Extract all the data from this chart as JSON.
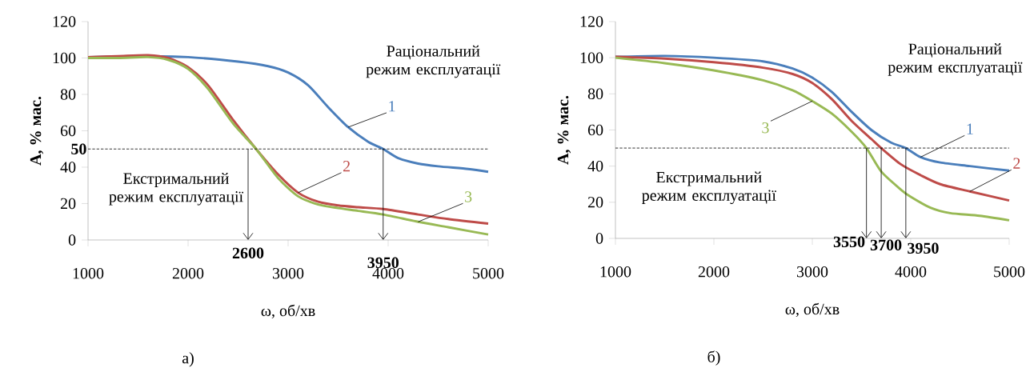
{
  "chart_data": [
    {
      "type": "line",
      "xlabel": "ω, об/хв",
      "ylabel": "А, % мас.",
      "xlim": [
        1000,
        5000
      ],
      "xticks": [
        1000,
        2000,
        3000,
        4000,
        5000
      ],
      "ylim": [
        0,
        120
      ],
      "yticks": [
        0,
        20,
        40,
        60,
        80,
        100,
        120
      ],
      "grid": false,
      "series": [
        {
          "name": "1",
          "color": "#4a7ebb",
          "x": [
            1000,
            1500,
            2000,
            2500,
            2800,
            3000,
            3200,
            3400,
            3600,
            3800,
            3950,
            4100,
            4300,
            4500,
            4800,
            5000
          ],
          "values": [
            100.5,
            101,
            100.5,
            98,
            95.5,
            92,
            85,
            73,
            62,
            54,
            50,
            45,
            42,
            40.5,
            39,
            37.5
          ]
        },
        {
          "name": "2",
          "color": "#be4b48",
          "x": [
            1000,
            1300,
            1600,
            1800,
            2000,
            2200,
            2450,
            2680,
            2900,
            3100,
            3300,
            3500,
            3700,
            3950,
            4300,
            4600,
            5000
          ],
          "values": [
            100.5,
            101,
            101.5,
            100,
            95,
            85,
            66,
            50,
            36,
            26,
            21,
            19,
            18,
            17,
            14,
            11.5,
            9
          ]
        },
        {
          "name": "3",
          "color": "#98b954",
          "x": [
            1000,
            1300,
            1600,
            1800,
            2000,
            2200,
            2450,
            2680,
            2900,
            3100,
            3300,
            3500,
            3700,
            3950,
            4300,
            4600,
            5000
          ],
          "values": [
            100,
            100,
            100.5,
            99,
            94,
            83,
            64,
            50,
            34,
            24,
            19.5,
            17.5,
            16,
            14,
            10,
            7,
            3
          ]
        }
      ],
      "ref_lines": [
        {
          "axis": "y",
          "value": 50,
          "label": "50",
          "color": "#000000",
          "line_style": "dashed"
        }
      ],
      "annotations": [
        "Раціональний режим експлуатації",
        "Екстримальний режим експлуатації",
        {
          "text": "2600",
          "x": 2600,
          "y": 50
        },
        {
          "text": "3950",
          "x": 3950,
          "y": 50
        },
        "а)"
      ]
    },
    {
      "type": "line",
      "xlabel": "ω, об/хв",
      "ylabel": "А, % мас.",
      "xlim": [
        1000,
        5000
      ],
      "xticks": [
        1000,
        2000,
        3000,
        4000,
        5000
      ],
      "ylim": [
        0,
        120
      ],
      "yticks": [
        0,
        20,
        40,
        60,
        80,
        100,
        120
      ],
      "grid": false,
      "series": [
        {
          "name": "1",
          "color": "#4a7ebb",
          "x": [
            1000,
            1500,
            2000,
            2500,
            2800,
            3000,
            3200,
            3400,
            3600,
            3800,
            3950,
            4100,
            4300,
            4600,
            5000
          ],
          "values": [
            100.5,
            101,
            100,
            98,
            94,
            89,
            81,
            70,
            60,
            53,
            50,
            45,
            42,
            40,
            37.5
          ]
        },
        {
          "name": "2",
          "color": "#be4b48",
          "x": [
            1000,
            1500,
            2000,
            2500,
            2800,
            3000,
            3200,
            3400,
            3600,
            3700,
            3900,
            4100,
            4300,
            4600,
            5000
          ],
          "values": [
            100.5,
            99.5,
            97.5,
            94.5,
            91,
            86,
            77,
            65,
            55,
            50,
            41,
            35,
            30,
            26,
            21
          ]
        },
        {
          "name": "3",
          "color": "#98b954",
          "x": [
            1000,
            1500,
            2000,
            2500,
            2800,
            3000,
            3200,
            3400,
            3550,
            3700,
            3900,
            4000,
            4200,
            4400,
            4700,
            5000
          ],
          "values": [
            100,
            97,
            93,
            87.5,
            82,
            76,
            69,
            59,
            50,
            37,
            27,
            23,
            17,
            14,
            12.5,
            10
          ]
        }
      ],
      "ref_lines": [
        {
          "axis": "y",
          "value": 50,
          "color": "#000000",
          "line_style": "dashed"
        }
      ],
      "annotations": [
        "Раціональний режим експлуатації",
        "Екстримальний режим експлуатації",
        {
          "text": "3550",
          "x": 3550,
          "y": 50
        },
        {
          "text": "3700",
          "x": 3700,
          "y": 50
        },
        {
          "text": "3950",
          "x": 3950,
          "y": 50
        },
        "б)"
      ]
    }
  ]
}
